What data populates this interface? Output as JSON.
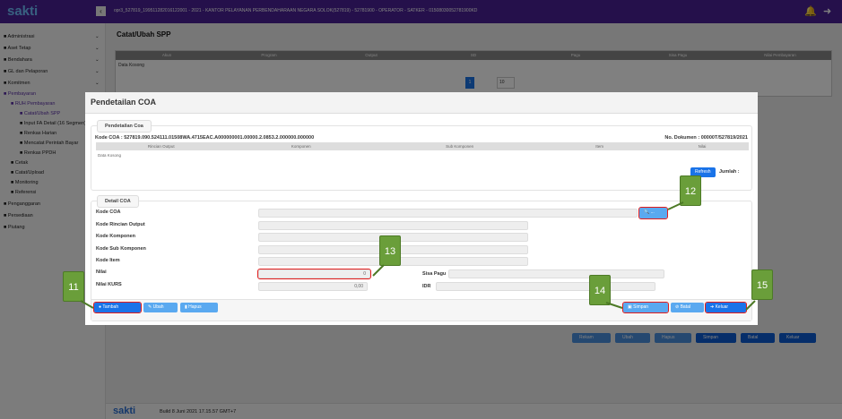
{
  "header": {
    "logo": "sakti",
    "user_info": "opr3_527819_199511282016122001 - 2021 - KANTOR PELAYANAN PERBENDAHARAAN NEGARA SOLOK(527819) - 52781900 - OPERATOR - SATKER - 01508030052781900KD",
    "notification_count": "1",
    "brand_color": "#3b1a78"
  },
  "sidebar": {
    "items": [
      {
        "label": "Administrasi"
      },
      {
        "label": "Aset Tetap"
      },
      {
        "label": "Bendahara"
      },
      {
        "label": "GL dan Pelaporan"
      },
      {
        "label": "Komitmen"
      },
      {
        "label": "Pembayaran"
      },
      {
        "label": "RUH Pembayaran"
      },
      {
        "label": "Catat/Ubah SPP"
      },
      {
        "label": "Input FA Detail (16 Segmen)"
      },
      {
        "label": "Renkas Harian"
      },
      {
        "label": "Mencatat Perintah Bayar"
      },
      {
        "label": "Renkas PPDH"
      },
      {
        "label": "Cetak"
      },
      {
        "label": "Catat/Upload"
      },
      {
        "label": "Monitoring"
      },
      {
        "label": "Referensi"
      },
      {
        "label": "Penganggaran"
      },
      {
        "label": "Persediaan"
      },
      {
        "label": "Piutang"
      }
    ]
  },
  "page": {
    "title": "Catat/Ubah SPP",
    "columns": [
      "Akun",
      "Program",
      "Output",
      "SD",
      "Pagu",
      "Sisa Pagu",
      "Nilai Pembayaran"
    ],
    "empty": "Data Kosong",
    "page": "1",
    "page_size": "10",
    "buttons": [
      "Rekam",
      "Ubah",
      "Hapus",
      "Simpan",
      "Batal",
      "Keluar"
    ]
  },
  "footer": {
    "logo": "sakti",
    "build": "Build 8 Juni 2021 17.15.57 GMT+7"
  },
  "modal": {
    "title": "Pendetailan COA",
    "section1": {
      "legend": "Pendetailan Coa",
      "kode_coa_label": "Kode COA :",
      "kode_coa": "527819.090.524111.01508WA.4715EAC.A000000001.00000.2.0853.2.000000.000000",
      "no_dok_label": "No. Dokumen :",
      "no_dok": "00000T/527819/2021",
      "columns": [
        "Rincian Output",
        "Komponen",
        "Sub Komponen",
        "Item",
        "Nilai"
      ],
      "empty": "Data Kosong",
      "page": "1",
      "page_size": "10",
      "refresh": "Refresh",
      "jumlah": "Jumlah :"
    },
    "section2": {
      "legend": "Detail COA",
      "kode_coa": "Kode COA",
      "kode_rincian": "Kode Rincian Output",
      "kode_komponen": "Kode Komponen",
      "kode_sub": "Kode Sub Komponen",
      "kode_item": "Kode Item",
      "nilai": "Nilai",
      "nilai_value": "0",
      "nilai_kurs": "Nilai KURS",
      "nilai_kurs_value": "0,00",
      "sisa_pagu": "Sisa Pagu",
      "idr": "IDR",
      "search_button": "..."
    },
    "buttons": {
      "tambah": "Tambah",
      "ubah": "Ubah",
      "hapus": "Hapus",
      "simpan": "Simpan",
      "batal": "Batal",
      "keluar": "Keluar"
    }
  },
  "callouts": [
    "11",
    "12",
    "13",
    "14",
    "15"
  ]
}
